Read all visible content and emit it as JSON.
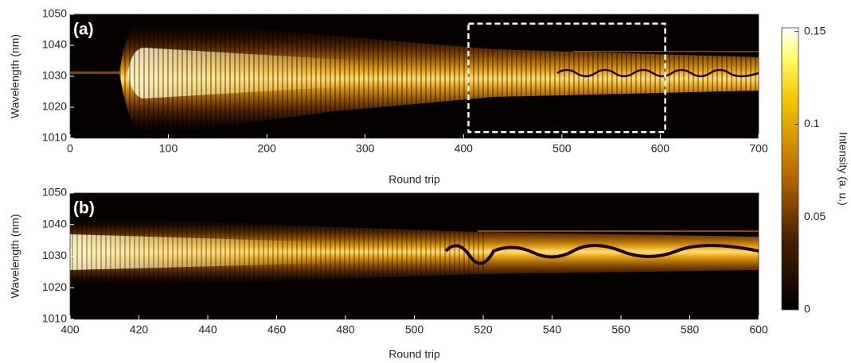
{
  "chart_data": [
    {
      "type": "heatmap",
      "panel_label": "(a)",
      "xlabel": "Round trip",
      "ylabel": "Wavelength (nm)",
      "xlim": [
        0,
        700
      ],
      "xticks": [
        0,
        100,
        200,
        300,
        400,
        500,
        600,
        700
      ],
      "ylim": [
        1010,
        1050
      ],
      "yticks": [
        1010,
        1020,
        1030,
        1040,
        1050
      ],
      "highlight_box": {
        "x": [
          405,
          605
        ],
        "y": [
          1012,
          1047
        ]
      }
    },
    {
      "type": "heatmap",
      "panel_label": "(b)",
      "xlabel": "Round trip",
      "ylabel": "Wavelength (nm)",
      "xlim": [
        400,
        600
      ],
      "xticks": [
        400,
        420,
        440,
        460,
        480,
        500,
        520,
        540,
        560,
        580,
        600
      ],
      "ylim": [
        1010,
        1050
      ],
      "yticks": [
        1010,
        1020,
        1030,
        1040,
        1050
      ]
    }
  ],
  "colorbar": {
    "label": "Intensity (a. u.)",
    "lim": [
      0,
      0.152
    ],
    "ticks": [
      0,
      0.05,
      0.1,
      0.15
    ]
  }
}
